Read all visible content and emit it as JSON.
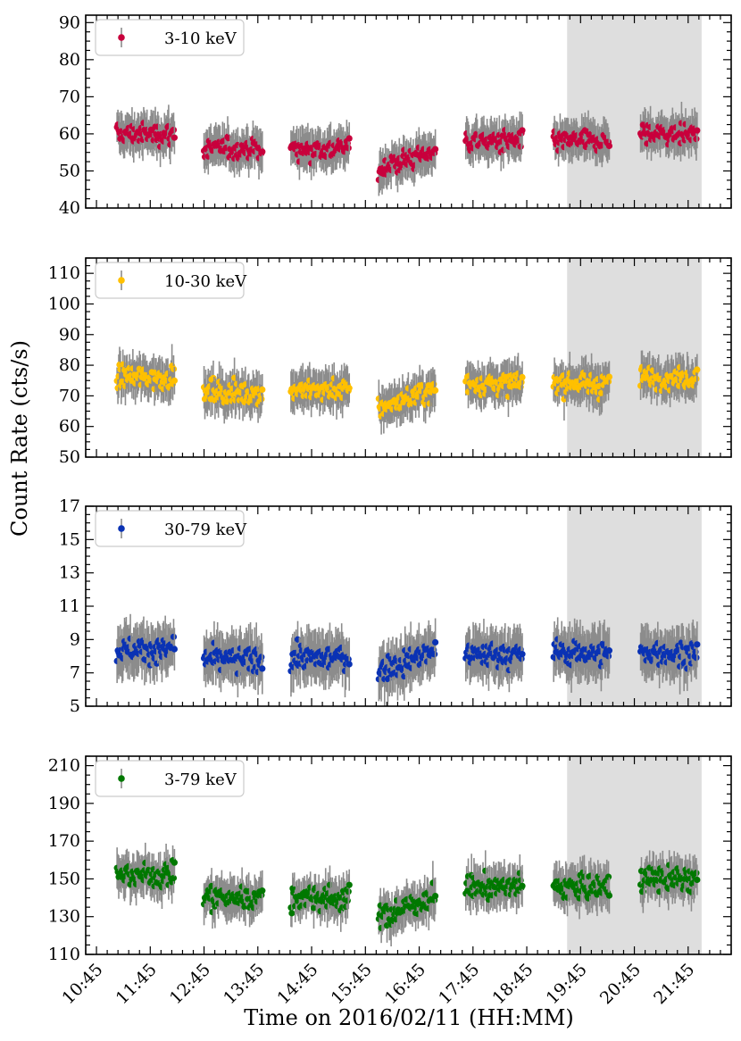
{
  "chart_data": {
    "type": "scatter",
    "xlabel": "Time on 2016/02/11 (HH:MM)",
    "ylabel": "Count Rate (cts/s)",
    "x_tick_labels": [
      "10:45",
      "11:45",
      "12:45",
      "13:45",
      "14:45",
      "15:45",
      "16:45",
      "17:45",
      "18:45",
      "19:45",
      "20:45",
      "21:45"
    ],
    "xlim": [
      "10:33",
      "22:33"
    ],
    "shaded_region": [
      "19:30",
      "22:00"
    ],
    "segments": [
      {
        "start": "11:08",
        "end": "12:12"
      },
      {
        "start": "12:45",
        "end": "13:50"
      },
      {
        "start": "14:22",
        "end": "15:27"
      },
      {
        "start": "16:00",
        "end": "17:03"
      },
      {
        "start": "17:37",
        "end": "18:40"
      },
      {
        "start": "19:15",
        "end": "20:17"
      },
      {
        "start": "20:52",
        "end": "21:55"
      }
    ],
    "panels": [
      {
        "legend": "3-10 keV",
        "color": "#c8003c",
        "ylim": [
          40,
          92
        ],
        "y_ticks": [
          40,
          50,
          60,
          70,
          80,
          90
        ],
        "minor_step": 2.5,
        "segment_means": [
          60,
          56,
          56,
          53,
          58,
          58,
          60
        ],
        "scatter": 3.5,
        "error": 4.5
      },
      {
        "legend": "10-30 keV",
        "color": "#ffc000",
        "ylim": [
          50,
          115
        ],
        "y_ticks": [
          50,
          60,
          70,
          80,
          90,
          100,
          110
        ],
        "minor_step": 2.5,
        "segment_means": [
          76,
          71,
          72,
          69,
          74,
          74,
          76
        ],
        "scatter": 4.5,
        "error": 5.5
      },
      {
        "legend": "30-79 keV",
        "color": "#0a32b4",
        "ylim": [
          5,
          17
        ],
        "y_ticks": [
          5,
          7,
          9,
          11,
          13,
          15,
          17
        ],
        "minor_step": 0.5,
        "segment_means": [
          8.4,
          7.8,
          7.9,
          7.7,
          8.1,
          8.2,
          8.2
        ],
        "scatter": 0.9,
        "error": 1.3
      },
      {
        "legend": "3-79 keV",
        "color": "#007800",
        "ylim": [
          110,
          215
        ],
        "y_ticks": [
          110,
          130,
          150,
          170,
          190,
          210
        ],
        "minor_step": 5,
        "segment_means": [
          152,
          140,
          140,
          135,
          146,
          146,
          150
        ],
        "scatter": 8,
        "error": 9
      }
    ]
  }
}
